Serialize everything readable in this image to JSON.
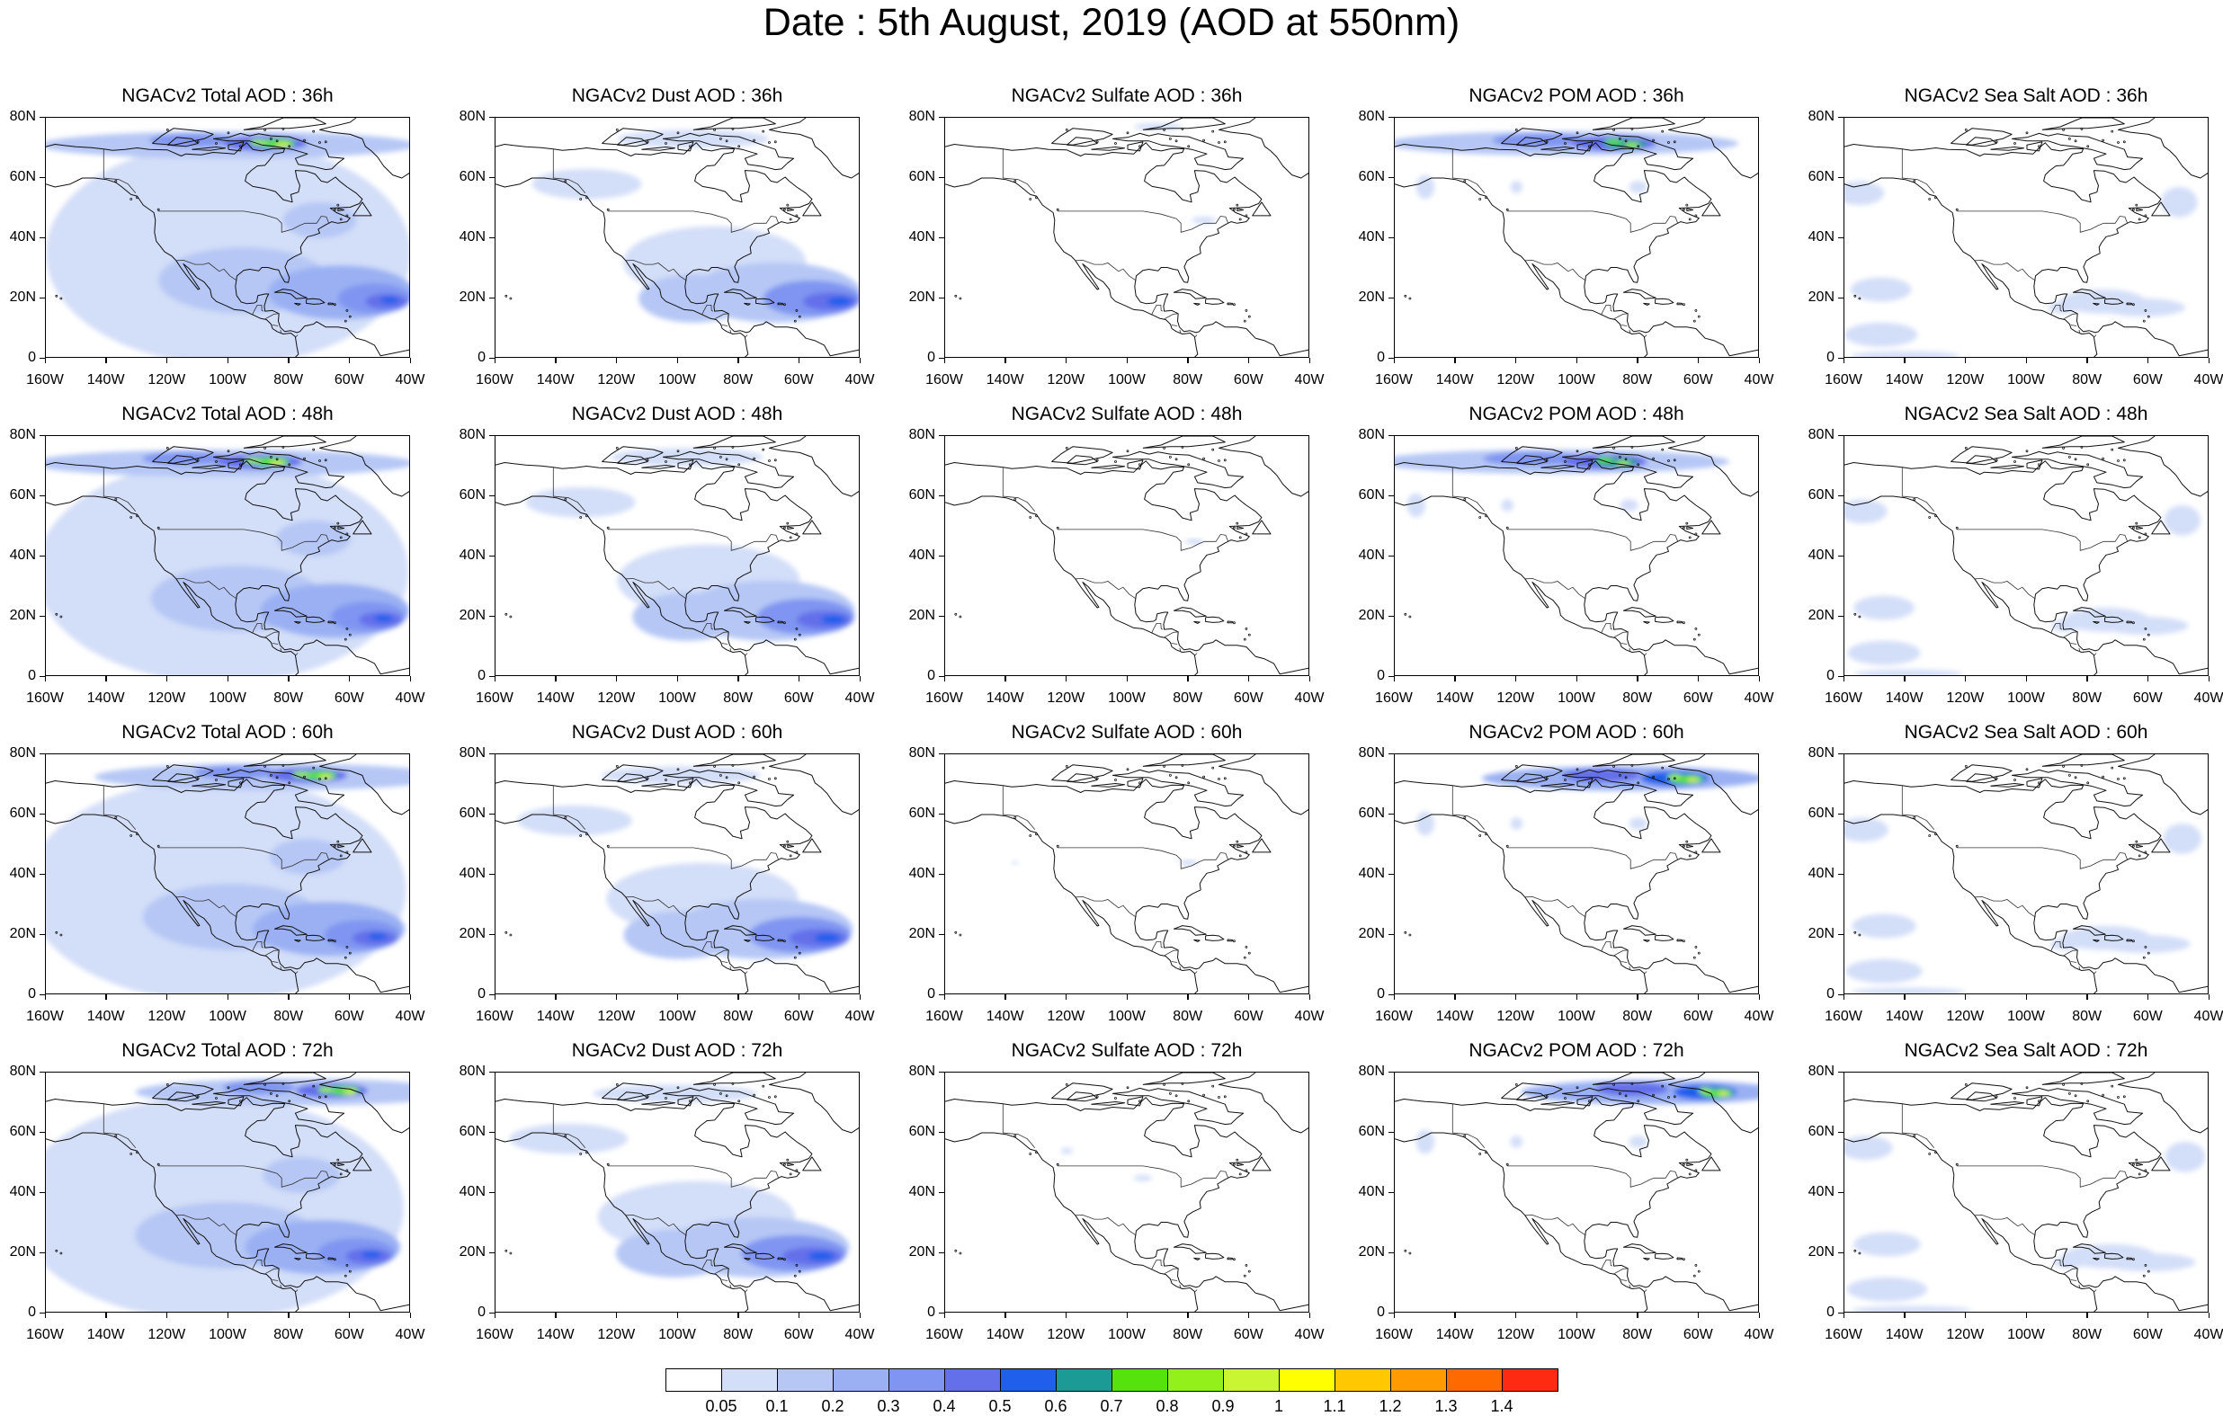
{
  "title": "Date : 5th August, 2019 (AOD at 550nm)",
  "panel_titles": [
    [
      "NGACv2 Total AOD : 36h",
      "NGACv2 Dust AOD : 36h",
      "NGACv2 Sulfate AOD : 36h",
      "NGACv2 POM AOD : 36h",
      "NGACv2 Sea Salt AOD : 36h"
    ],
    [
      "NGACv2 Total AOD : 48h",
      "NGACv2 Dust AOD : 48h",
      "NGACv2 Sulfate AOD : 48h",
      "NGACv2 POM AOD : 48h",
      "NGACv2 Sea Salt AOD : 48h"
    ],
    [
      "NGACv2 Total AOD : 60h",
      "NGACv2 Dust AOD : 60h",
      "NGACv2 Sulfate AOD : 60h",
      "NGACv2 POM AOD : 60h",
      "NGACv2 Sea Salt AOD : 60h"
    ],
    [
      "NGACv2 Total AOD : 72h",
      "NGACv2 Dust AOD : 72h",
      "NGACv2 Sulfate AOD : 72h",
      "NGACv2 POM AOD : 72h",
      "NGACv2 Sea Salt  AOD : 72h"
    ]
  ],
  "lat_labels": [
    "80N",
    "60N",
    "40N",
    "20N",
    "0"
  ],
  "lon_labels": [
    "160W",
    "140W",
    "120W",
    "100W",
    "80W",
    "60W",
    "40W"
  ],
  "colorbar": {
    "labels": [
      "0.05",
      "0.1",
      "0.2",
      "0.3",
      "0.4",
      "0.5",
      "0.6",
      "0.7",
      "0.8",
      "0.9",
      "1",
      "1.1",
      "1.2",
      "1.3",
      "1.4"
    ],
    "colors": [
      "#ffffff",
      "#d3def8",
      "#b6c7f5",
      "#9ab0f3",
      "#7f95f1",
      "#6370ea",
      "#1f5fec",
      "#1b9a96",
      "#55e20d",
      "#94f01a",
      "#c9f532",
      "#ffff00",
      "#ffc800",
      "#ff9a00",
      "#ff6a00",
      "#ff2a12"
    ]
  }
}
